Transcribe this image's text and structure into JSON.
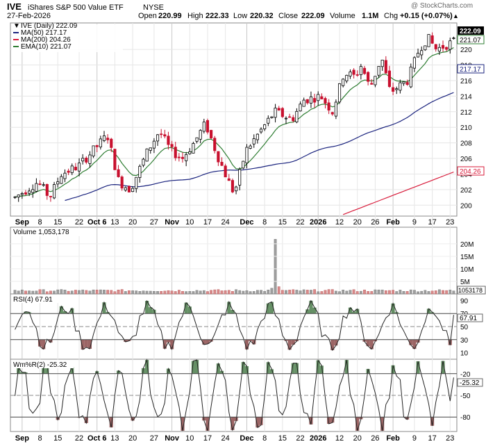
{
  "header": {
    "symbol": "IVE",
    "name": "iShares S&P 500 Value ETF",
    "exchange": "NYSE",
    "date": "27-Feb-2026",
    "watermark": "@ StockCharts.com",
    "ohlc": {
      "open_label": "Open",
      "open": "220.99",
      "high_label": "High",
      "high": "222.33",
      "low_label": "Low",
      "low": "220.32",
      "close_label": "Close",
      "close": "222.09",
      "volume_label": "Volume",
      "volume": "1.1M",
      "chg_label": "Chg",
      "chg": "+0.15 (+0.07%)"
    },
    "chg_arrow": "▲"
  },
  "legend": {
    "price": "IVE (Daily) 222.09",
    "ma50": "MA(50) 217.17",
    "ma200": "MA(200) 204.26",
    "ema10": "EMA(10) 221.07"
  },
  "panels": {
    "volume_label": "Volume 1,053,178",
    "rsi_label": "RSI(4) 67.91",
    "wr_label": "Wm%R(2) -25.32"
  },
  "badges": {
    "price": "222.09",
    "ema10": "221.07",
    "ma50": "217.17",
    "ma200": "204.26",
    "volume": "1053178",
    "rsi": "67.91",
    "wr": "-25.32"
  },
  "colors": {
    "up": "#000000",
    "down": "#c8102e",
    "ma50": "#1a237e",
    "ma200": "#d81b3a",
    "ema10": "#2e7d32",
    "volume_up": "#9e9e9e",
    "volume_down": "#d88a8a",
    "osc_fill": "#4a7c4a",
    "osc_low_fill": "#8b4a4a"
  },
  "chart_data": {
    "type": "candlestick",
    "x_ticks": [
      "Sep",
      "8",
      "15",
      "22",
      "Oct 6",
      "13",
      "20",
      "27",
      "Nov",
      "10",
      "17",
      "24",
      "Dec",
      "8",
      "15",
      "22",
      "2026",
      "12",
      "20",
      "26",
      "Feb",
      "9",
      "17",
      "23"
    ],
    "price_axis": {
      "range": [
        198.6,
        223.4
      ],
      "ticks": [
        "200",
        "202",
        "204",
        "206",
        "208",
        "210",
        "212",
        "214",
        "216",
        "218",
        "220"
      ]
    },
    "volume_axis": {
      "range": [
        0,
        23000000
      ],
      "ticks": [
        "5M",
        "10M",
        "15M",
        "20M"
      ]
    },
    "rsi_axis": {
      "range": [
        0,
        100
      ],
      "ticks": [
        "10",
        "30",
        "50",
        "70",
        "90"
      ],
      "levels": [
        30,
        70
      ]
    },
    "wr_axis": {
      "range": [
        -100,
        0
      ],
      "ticks": [
        "-20",
        "-50",
        "-80"
      ],
      "levels": [
        -20,
        -80
      ]
    }
  }
}
